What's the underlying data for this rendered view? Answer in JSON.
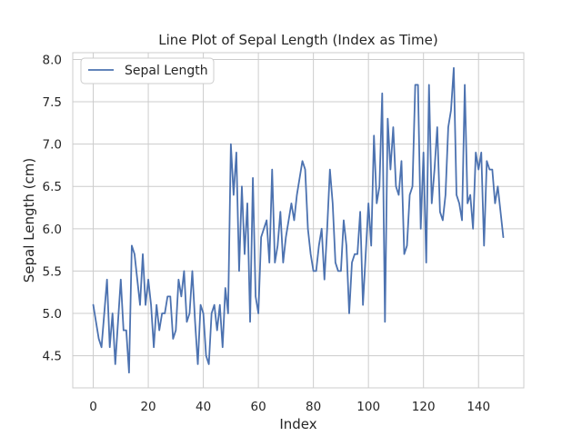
{
  "chart_data": {
    "type": "line",
    "title": "Line Plot of Sepal Length (Index as Time)",
    "xlabel": "Index",
    "ylabel": "Sepal Length (cm)",
    "xlim": [
      -7.45,
      156.45
    ],
    "ylim": [
      4.12,
      8.08
    ],
    "xticks": [
      0,
      20,
      40,
      60,
      80,
      100,
      120,
      140
    ],
    "yticks": [
      4.5,
      5.0,
      5.5,
      6.0,
      6.5,
      7.0,
      7.5,
      8.0
    ],
    "ytick_labels": [
      "4.5",
      "5.0",
      "5.5",
      "6.0",
      "6.5",
      "7.0",
      "7.5",
      "8.0"
    ],
    "grid": true,
    "legend_position": "top-left",
    "colors": {
      "line": "#4c72b0",
      "grid": "#cccccc",
      "frame": "#cccccc",
      "text": "#262626"
    },
    "series": [
      {
        "name": "Sepal Length",
        "values": [
          5.1,
          4.9,
          4.7,
          4.6,
          5.0,
          5.4,
          4.6,
          5.0,
          4.4,
          4.9,
          5.4,
          4.8,
          4.8,
          4.3,
          5.8,
          5.7,
          5.4,
          5.1,
          5.7,
          5.1,
          5.4,
          5.1,
          4.6,
          5.1,
          4.8,
          5.0,
          5.0,
          5.2,
          5.2,
          4.7,
          4.8,
          5.4,
          5.2,
          5.5,
          4.9,
          5.0,
          5.5,
          4.9,
          4.4,
          5.1,
          5.0,
          4.5,
          4.4,
          5.0,
          5.1,
          4.8,
          5.1,
          4.6,
          5.3,
          5.0,
          7.0,
          6.4,
          6.9,
          5.5,
          6.5,
          5.7,
          6.3,
          4.9,
          6.6,
          5.2,
          5.0,
          5.9,
          6.0,
          6.1,
          5.6,
          6.7,
          5.6,
          5.8,
          6.2,
          5.6,
          5.9,
          6.1,
          6.3,
          6.1,
          6.4,
          6.6,
          6.8,
          6.7,
          6.0,
          5.7,
          5.5,
          5.5,
          5.8,
          6.0,
          5.4,
          6.0,
          6.7,
          6.3,
          5.6,
          5.5,
          5.5,
          6.1,
          5.8,
          5.0,
          5.6,
          5.7,
          5.7,
          6.2,
          5.1,
          5.7,
          6.3,
          5.8,
          7.1,
          6.3,
          6.5,
          7.6,
          4.9,
          7.3,
          6.7,
          7.2,
          6.5,
          6.4,
          6.8,
          5.7,
          5.8,
          6.4,
          6.5,
          7.7,
          7.7,
          6.0,
          6.9,
          5.6,
          7.7,
          6.3,
          6.7,
          7.2,
          6.2,
          6.1,
          6.4,
          7.2,
          7.4,
          7.9,
          6.4,
          6.3,
          6.1,
          7.7,
          6.3,
          6.4,
          6.0,
          6.9,
          6.7,
          6.9,
          5.8,
          6.8,
          6.7,
          6.7,
          6.3,
          6.5,
          6.2,
          5.9
        ]
      }
    ]
  }
}
